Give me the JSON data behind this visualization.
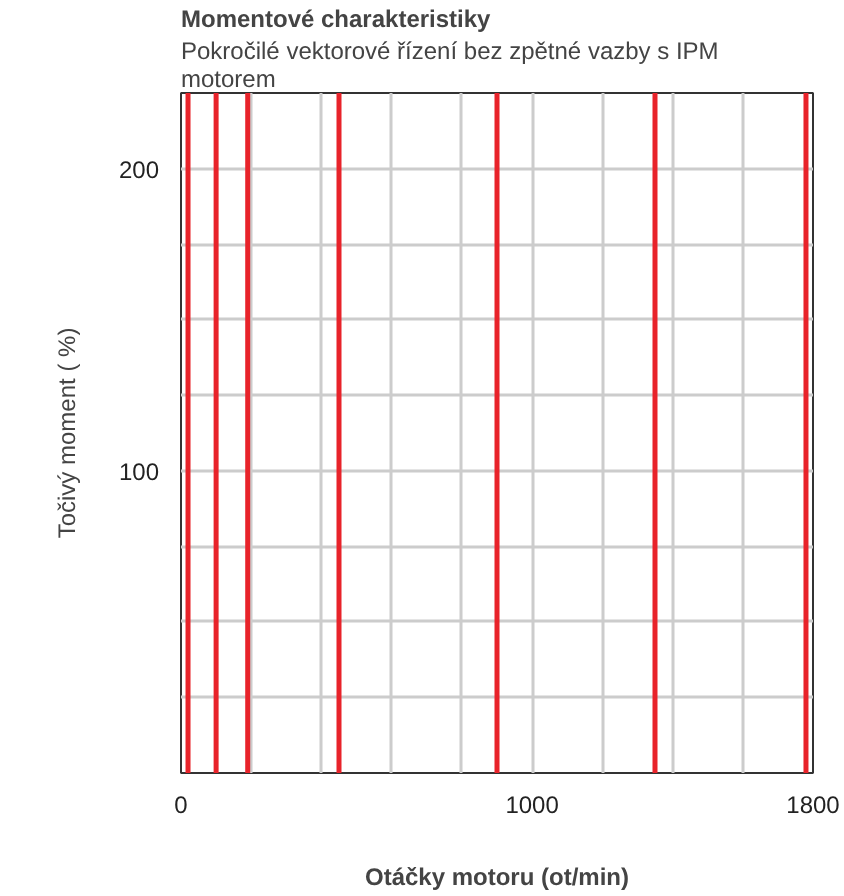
{
  "chart_data": {
    "type": "line",
    "title": "Momentové charakteristiky",
    "subtitle": "Pokročilé vektorové řízení bez zpětné vazby s IPM motorem",
    "xlabel": "Otáčky motoru (ot/min)",
    "ylabel": "Točivý moment ( %)",
    "xlim": [
      0,
      1800
    ],
    "ylim": [
      0,
      225
    ],
    "xticks": [
      0,
      {
        "value": 200,
        "label": null
      },
      {
        "value": 400,
        "label": null
      },
      {
        "value": 600,
        "label": null
      },
      {
        "value": 800,
        "label": null
      },
      1000,
      {
        "value": 1200,
        "label": null
      },
      {
        "value": 1400,
        "label": null
      },
      {
        "value": 1600,
        "label": null
      },
      1800
    ],
    "yticks": [
      {
        "value": 25,
        "label": null
      },
      {
        "value": 50,
        "label": null
      },
      {
        "value": 75,
        "label": null
      },
      100,
      {
        "value": 125,
        "label": null
      },
      {
        "value": 150,
        "label": null
      },
      {
        "value": 175,
        "label": null
      },
      200
    ],
    "grid": true,
    "series": [
      {
        "color": "#e8232a",
        "x": [
          20,
          20
        ],
        "values": [
          0,
          225
        ]
      },
      {
        "color": "#e8232a",
        "x": [
          100,
          100
        ],
        "values": [
          0,
          225
        ]
      },
      {
        "color": "#e8232a",
        "x": [
          190,
          190
        ],
        "values": [
          0,
          225
        ]
      },
      {
        "color": "#e8232a",
        "x": [
          450,
          450
        ],
        "values": [
          0,
          225
        ]
      },
      {
        "color": "#e8232a",
        "x": [
          900,
          900
        ],
        "values": [
          0,
          225
        ]
      },
      {
        "color": "#e8232a",
        "x": [
          1350,
          1350
        ],
        "values": [
          0,
          225
        ]
      },
      {
        "color": "#e8232a",
        "x": [
          1780,
          1780
        ],
        "values": [
          0,
          225
        ]
      }
    ]
  }
}
